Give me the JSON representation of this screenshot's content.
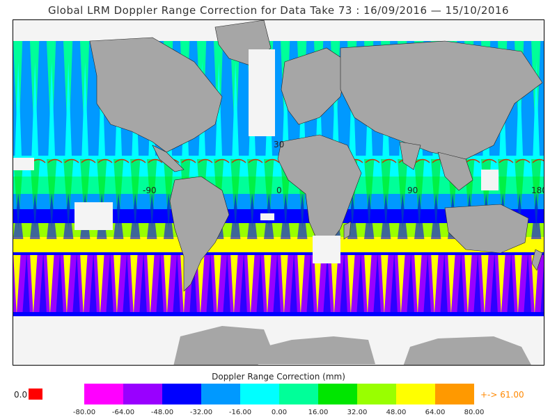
{
  "title": "Global LRM Doppler Range Correction for Data Take 73 : 16/09/2016 — 15/10/2016",
  "map": {
    "grid_labels": {
      "lon_m90": "-90",
      "lon_0": "0",
      "lon_90": "90",
      "lon_180": "180",
      "lat_30": "30"
    },
    "land_color": "#a6a6a6",
    "nodata_color": "#f4f4f4"
  },
  "colorbar": {
    "label": "Doppler Range Correction (mm)",
    "colors": [
      "#ff00ff",
      "#9900ff",
      "#0000ff",
      "#0099ff",
      "#00ffff",
      "#00ff99",
      "#00e600",
      "#99ff00",
      "#ffff00",
      "#ff9900"
    ],
    "ticks": [
      "-80.00",
      "-64.00",
      "-48.00",
      "-32.00",
      "-16.00",
      "0.00",
      "16.00",
      "32.00",
      "48.00",
      "64.00",
      "80.00"
    ],
    "zero_label": "0.0",
    "zero_color": "#ff0000",
    "max_label": "+-> 61.00",
    "max_color": "#ff8800"
  }
}
